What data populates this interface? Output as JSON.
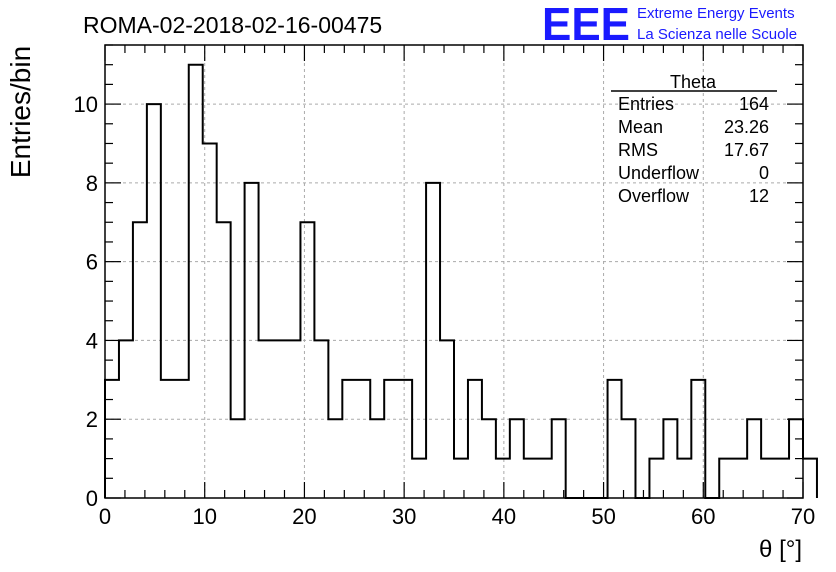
{
  "chart_data": {
    "type": "bar",
    "title": "ROMA-02-2018-02-16-00475",
    "xlabel": "θ [°]",
    "ylabel": "Entries/bin",
    "xlim": [
      0,
      70
    ],
    "ylim": [
      0,
      11.5
    ],
    "grid": true,
    "x_ticks": [
      "0",
      "10",
      "20",
      "30",
      "40",
      "50",
      "60",
      "70"
    ],
    "y_ticks": [
      "0",
      "2",
      "4",
      "6",
      "8",
      "10"
    ],
    "bin_width": 1.4,
    "bin_start": 0,
    "values": [
      3,
      4,
      7,
      10,
      3,
      3,
      11,
      9,
      7,
      2,
      8,
      4,
      4,
      4,
      7,
      4,
      2,
      3,
      3,
      2,
      3,
      3,
      1,
      8,
      4,
      1,
      3,
      2,
      1,
      2,
      1,
      1,
      2,
      0,
      0,
      0,
      3,
      2,
      0,
      1,
      2,
      1,
      3,
      0,
      1,
      1,
      2,
      1,
      1,
      2,
      1
    ]
  },
  "stats_box": {
    "title": "Theta",
    "rows": [
      {
        "label": "Entries",
        "value": "164"
      },
      {
        "label": "Mean",
        "value": "23.26"
      },
      {
        "label": "RMS",
        "value": "17.67"
      },
      {
        "label": "Underflow",
        "value": "0"
      },
      {
        "label": "Overflow",
        "value": "12"
      }
    ]
  },
  "logo": {
    "mark": "EEE",
    "line1": "Extreme Energy Events",
    "line2": "La Scienza nelle Scuole",
    "color": "#1a1aff"
  }
}
